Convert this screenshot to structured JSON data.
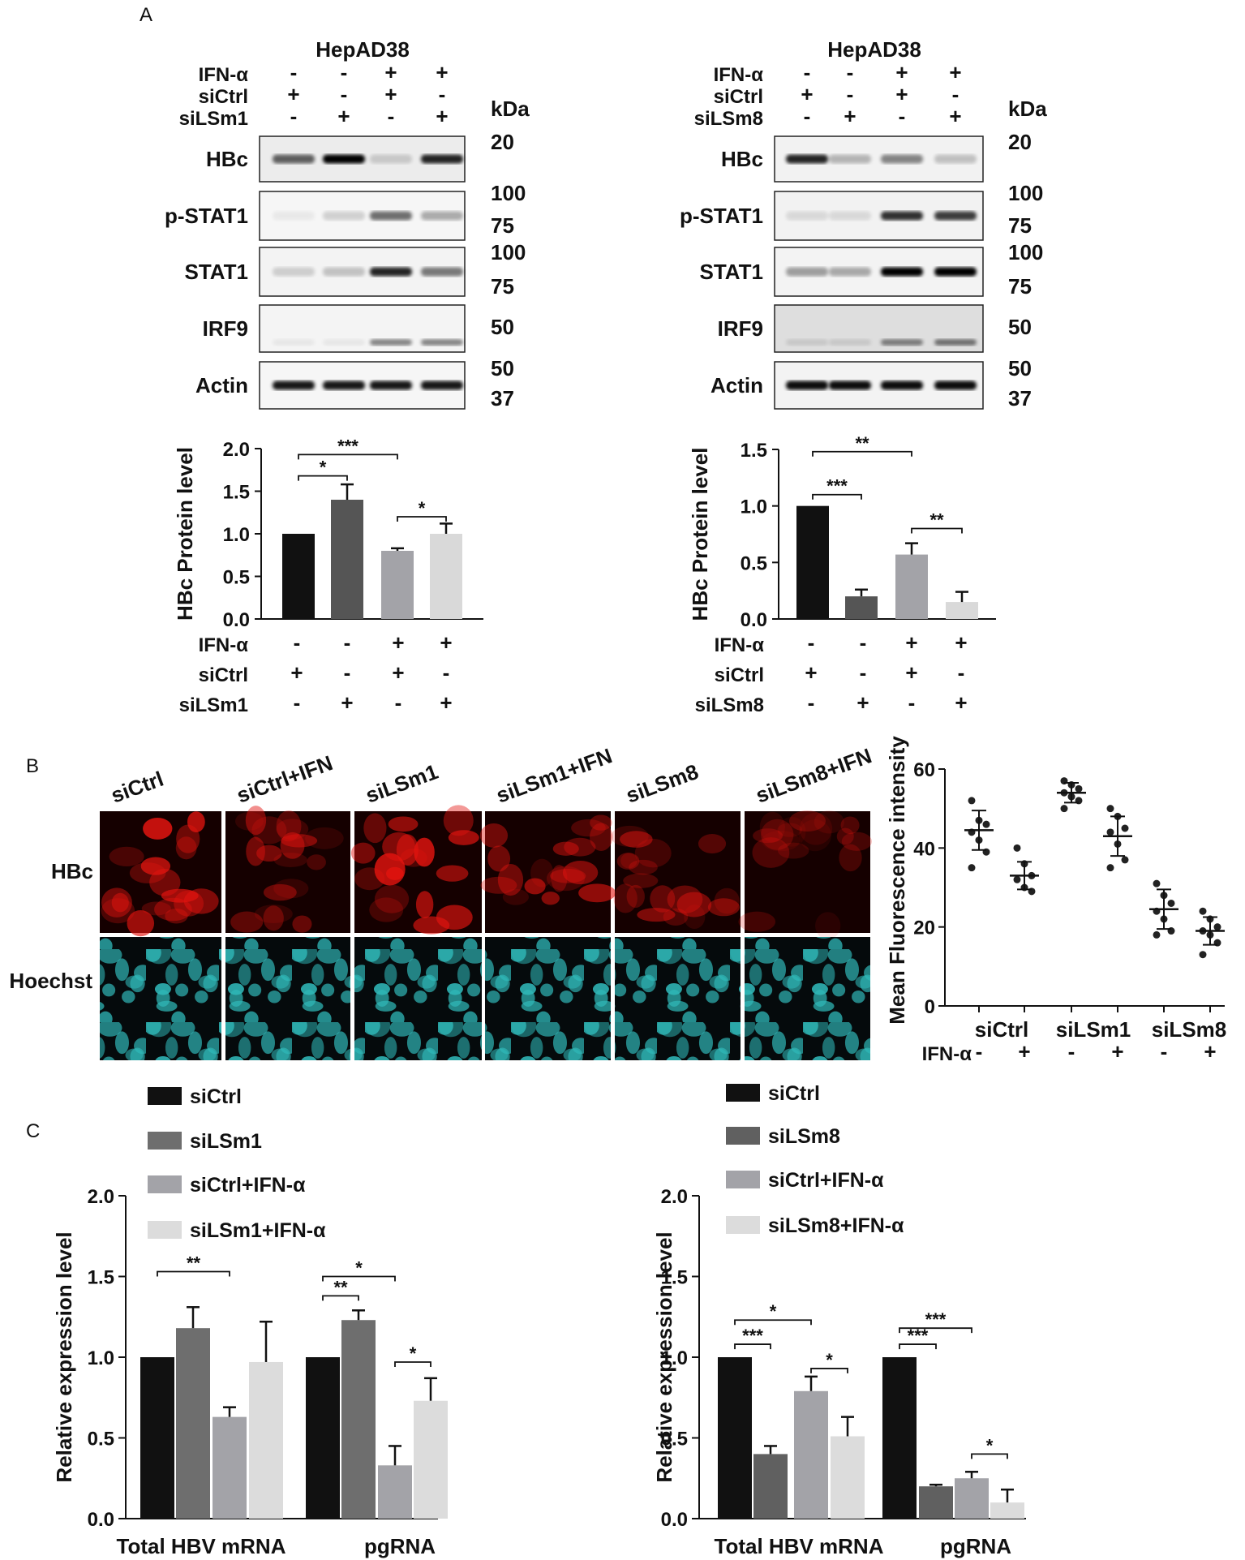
{
  "panel_labels": {
    "A": "A",
    "B": "B",
    "C": "C"
  },
  "western_blots": [
    {
      "cell_line": "HepAD38",
      "kda_label": "kDa",
      "conditions": [
        {
          "name": "IFN-α",
          "values": [
            "-",
            "-",
            "+",
            "+"
          ]
        },
        {
          "name": "siCtrl",
          "values": [
            "+",
            "-",
            "+",
            "-"
          ]
        },
        {
          "name": "siLSm1",
          "values": [
            "-",
            "+",
            "-",
            "+"
          ]
        }
      ],
      "blots": [
        {
          "label": "HBc",
          "markers": [
            "20"
          ],
          "intensity": [
            0.6,
            1.0,
            0.15,
            0.85
          ],
          "bg": "#ececec"
        },
        {
          "label": "p-STAT1",
          "markers": [
            "100",
            "75"
          ],
          "intensity": [
            0.05,
            0.15,
            0.55,
            0.3
          ],
          "bg": "#f6f6f6"
        },
        {
          "label": "STAT1",
          "markers": [
            "100",
            "75"
          ],
          "intensity": [
            0.15,
            0.2,
            0.85,
            0.5
          ],
          "bg": "#f3f3f3"
        },
        {
          "label": "IRF9",
          "markers": [
            "50"
          ],
          "intensity": [
            0.05,
            0.05,
            0.45,
            0.45
          ],
          "bg": "#f4f4f4"
        },
        {
          "label": "Actin",
          "markers": [
            "50",
            "37"
          ],
          "intensity": [
            0.9,
            0.9,
            0.9,
            0.9
          ],
          "bg": "#f6f6f6"
        }
      ]
    },
    {
      "cell_line": "HepAD38",
      "kda_label": "kDa",
      "conditions": [
        {
          "name": "IFN-α",
          "values": [
            "-",
            "-",
            "+",
            "+"
          ]
        },
        {
          "name": "siCtrl",
          "values": [
            "+",
            "-",
            "+",
            "-"
          ]
        },
        {
          "name": "siLSm8",
          "values": [
            "-",
            "+",
            "-",
            "+"
          ]
        }
      ],
      "blots": [
        {
          "label": "HBc",
          "markers": [
            "20"
          ],
          "intensity": [
            0.85,
            0.25,
            0.45,
            0.2
          ],
          "bg": "#f2f2f2"
        },
        {
          "label": "p-STAT1",
          "markers": [
            "100",
            "75"
          ],
          "intensity": [
            0.1,
            0.1,
            0.8,
            0.75
          ],
          "bg": "#f2f2f2"
        },
        {
          "label": "STAT1",
          "markers": [
            "100",
            "75"
          ],
          "intensity": [
            0.35,
            0.3,
            1.0,
            1.0
          ],
          "bg": "#f3f3f3"
        },
        {
          "label": "IRF9",
          "markers": [
            "50"
          ],
          "intensity": [
            0.1,
            0.1,
            0.45,
            0.5
          ],
          "bg": "#dedede"
        },
        {
          "label": "Actin",
          "markers": [
            "50",
            "37"
          ],
          "intensity": [
            0.95,
            0.95,
            0.95,
            0.95
          ],
          "bg": "#f3f3f3"
        }
      ]
    }
  ],
  "microscopy": {
    "columns": [
      "siCtrl",
      "siCtrl+IFN",
      "siLSm1",
      "siLSm1+IFN",
      "siLSm8",
      "siLSm8+IFN"
    ],
    "rows": [
      "HBc",
      "Hoechst"
    ],
    "hbc_brightness": [
      0.85,
      0.5,
      0.85,
      0.6,
      0.55,
      0.3
    ],
    "hbc_color": "#e4140f",
    "hoechst_color": "#2fb8b8"
  },
  "chart_data": [
    {
      "type": "bar",
      "title": "",
      "ylabel": "HBc Protein level",
      "ylim": [
        0,
        2.0
      ],
      "yticks": [
        "0.0",
        "0.5",
        "1.0",
        "1.5",
        "2.0"
      ],
      "values": [
        1.0,
        1.4,
        0.8,
        1.0
      ],
      "errors": [
        0,
        0.18,
        0.03,
        0.12
      ],
      "colors": [
        "#111111",
        "#555555",
        "#a3a3a8",
        "#d9d9d9"
      ],
      "significance": [
        {
          "from": 0,
          "to": 1,
          "label": "*",
          "y": 1.68
        },
        {
          "from": 0,
          "to": 2,
          "label": "***",
          "y": 1.93
        },
        {
          "from": 2,
          "to": 3,
          "label": "*",
          "y": 1.2
        }
      ],
      "condition_rows": [
        {
          "name": "IFN-α",
          "values": [
            "-",
            "-",
            "+",
            "+"
          ]
        },
        {
          "name": "siCtrl",
          "values": [
            "+",
            "-",
            "+",
            "-"
          ]
        },
        {
          "name": "siLSm1",
          "values": [
            "-",
            "+",
            "-",
            "+"
          ]
        }
      ]
    },
    {
      "type": "bar",
      "title": "",
      "ylabel": "HBc Protein level",
      "ylim": [
        0,
        1.5
      ],
      "yticks": [
        "0.0",
        "0.5",
        "1.0",
        "1.5"
      ],
      "values": [
        1.0,
        0.2,
        0.57,
        0.15
      ],
      "errors": [
        0,
        0.06,
        0.1,
        0.09
      ],
      "colors": [
        "#111111",
        "#555555",
        "#a3a3a8",
        "#d9d9d9"
      ],
      "significance": [
        {
          "from": 0,
          "to": 1,
          "label": "***",
          "y": 1.1
        },
        {
          "from": 0,
          "to": 2,
          "label": "**",
          "y": 1.48
        },
        {
          "from": 2,
          "to": 3,
          "label": "**",
          "y": 0.8
        }
      ],
      "condition_rows": [
        {
          "name": "IFN-α",
          "values": [
            "-",
            "-",
            "+",
            "+"
          ]
        },
        {
          "name": "siCtrl",
          "values": [
            "+",
            "-",
            "+",
            "-"
          ]
        },
        {
          "name": "siLSm8",
          "values": [
            "-",
            "+",
            "-",
            "+"
          ]
        }
      ]
    },
    {
      "type": "scatter",
      "title": "",
      "ylabel": "Mean Fluorescence intensity",
      "ylim": [
        0,
        60
      ],
      "yticks": [
        "0",
        "20",
        "40",
        "60"
      ],
      "groups": [
        "siCtrl",
        "siLSm1",
        "siLSm8"
      ],
      "ifn_row": {
        "name": "IFN-α",
        "values": [
          "-",
          "+",
          "-",
          "+",
          "-",
          "+"
        ]
      },
      "series": [
        {
          "mean": 44.5,
          "sd": 5.0,
          "points": [
            52,
            47,
            46,
            44,
            42,
            39,
            35
          ]
        },
        {
          "mean": 33.0,
          "sd": 3.5,
          "points": [
            40,
            36,
            33,
            32,
            30,
            29
          ]
        },
        {
          "mean": 54.0,
          "sd": 2.5,
          "points": [
            57,
            56,
            55,
            54,
            53,
            52,
            50
          ]
        },
        {
          "mean": 43.0,
          "sd": 5.0,
          "points": [
            50,
            48,
            45,
            44,
            41,
            37,
            35
          ]
        },
        {
          "mean": 24.5,
          "sd": 5.0,
          "points": [
            31,
            28,
            26,
            24,
            22,
            19,
            18
          ]
        },
        {
          "mean": 19.0,
          "sd": 3.5,
          "points": [
            24,
            22,
            20,
            19,
            18,
            16,
            13
          ]
        }
      ]
    },
    {
      "type": "bar",
      "title": "",
      "ylabel": "Relative expression level",
      "ylim": [
        0,
        2.0
      ],
      "yticks": [
        "0.0",
        "0.5",
        "1.0",
        "1.5",
        "2.0"
      ],
      "categories": [
        "Total HBV mRNA",
        "pgRNA"
      ],
      "legend": [
        "siCtrl",
        "siLSm1",
        "siCtrl+IFN-α",
        "siLSm1+IFN-α"
      ],
      "series": [
        {
          "name": "siCtrl",
          "values": [
            1.0,
            1.0
          ],
          "errors": [
            0,
            0
          ],
          "color": "#111111"
        },
        {
          "name": "siLSm1",
          "values": [
            1.18,
            1.23
          ],
          "errors": [
            0.13,
            0.06
          ],
          "color": "#6e6e6e"
        },
        {
          "name": "siCtrl+IFN-α",
          "values": [
            0.63,
            0.33
          ],
          "errors": [
            0.06,
            0.12
          ],
          "color": "#a3a3a8"
        },
        {
          "name": "siLSm1+IFN-α",
          "values": [
            0.97,
            0.73
          ],
          "errors": [
            0.25,
            0.14
          ],
          "color": "#dcdcdc"
        }
      ],
      "significance": [
        {
          "cat": 0,
          "from": 0,
          "to": 2,
          "label": "**",
          "y": 1.53
        },
        {
          "cat": 1,
          "from": 0,
          "to": 1,
          "label": "**",
          "y": 1.38
        },
        {
          "cat": 1,
          "from": 0,
          "to": 2,
          "label": "*",
          "y": 1.5
        },
        {
          "cat": 1,
          "from": 2,
          "to": 3,
          "label": "*",
          "y": 0.97
        }
      ]
    },
    {
      "type": "bar",
      "title": "",
      "ylabel": "Relative expression level",
      "ylim": [
        0,
        2.0
      ],
      "yticks": [
        "0.0",
        "0.5",
        "1.0",
        "1.5",
        "2.0"
      ],
      "categories": [
        "Total HBV mRNA",
        "pgRNA"
      ],
      "legend": [
        "siCtrl",
        "siLSm8",
        "siCtrl+IFN-α",
        "siLSm8+IFN-α"
      ],
      "series": [
        {
          "name": "siCtrl",
          "values": [
            1.0,
            1.0
          ],
          "errors": [
            0,
            0
          ],
          "color": "#111111"
        },
        {
          "name": "siLSm8",
          "values": [
            0.4,
            0.2
          ],
          "errors": [
            0.05,
            0.01
          ],
          "color": "#606060"
        },
        {
          "name": "siCtrl+IFN-α",
          "values": [
            0.79,
            0.25
          ],
          "errors": [
            0.09,
            0.04
          ],
          "color": "#a3a3a8"
        },
        {
          "name": "siLSm8+IFN-α",
          "values": [
            0.51,
            0.1
          ],
          "errors": [
            0.12,
            0.08
          ],
          "color": "#dcdcdc"
        }
      ],
      "significance": [
        {
          "cat": 0,
          "from": 0,
          "to": 1,
          "label": "***",
          "y": 1.08
        },
        {
          "cat": 0,
          "from": 0,
          "to": 2,
          "label": "*",
          "y": 1.23
        },
        {
          "cat": 0,
          "from": 2,
          "to": 3,
          "label": "*",
          "y": 0.93
        },
        {
          "cat": 1,
          "from": 0,
          "to": 1,
          "label": "***",
          "y": 1.08
        },
        {
          "cat": 1,
          "from": 0,
          "to": 2,
          "label": "***",
          "y": 1.18
        },
        {
          "cat": 1,
          "from": 2,
          "to": 3,
          "label": "*",
          "y": 0.4
        }
      ]
    }
  ]
}
